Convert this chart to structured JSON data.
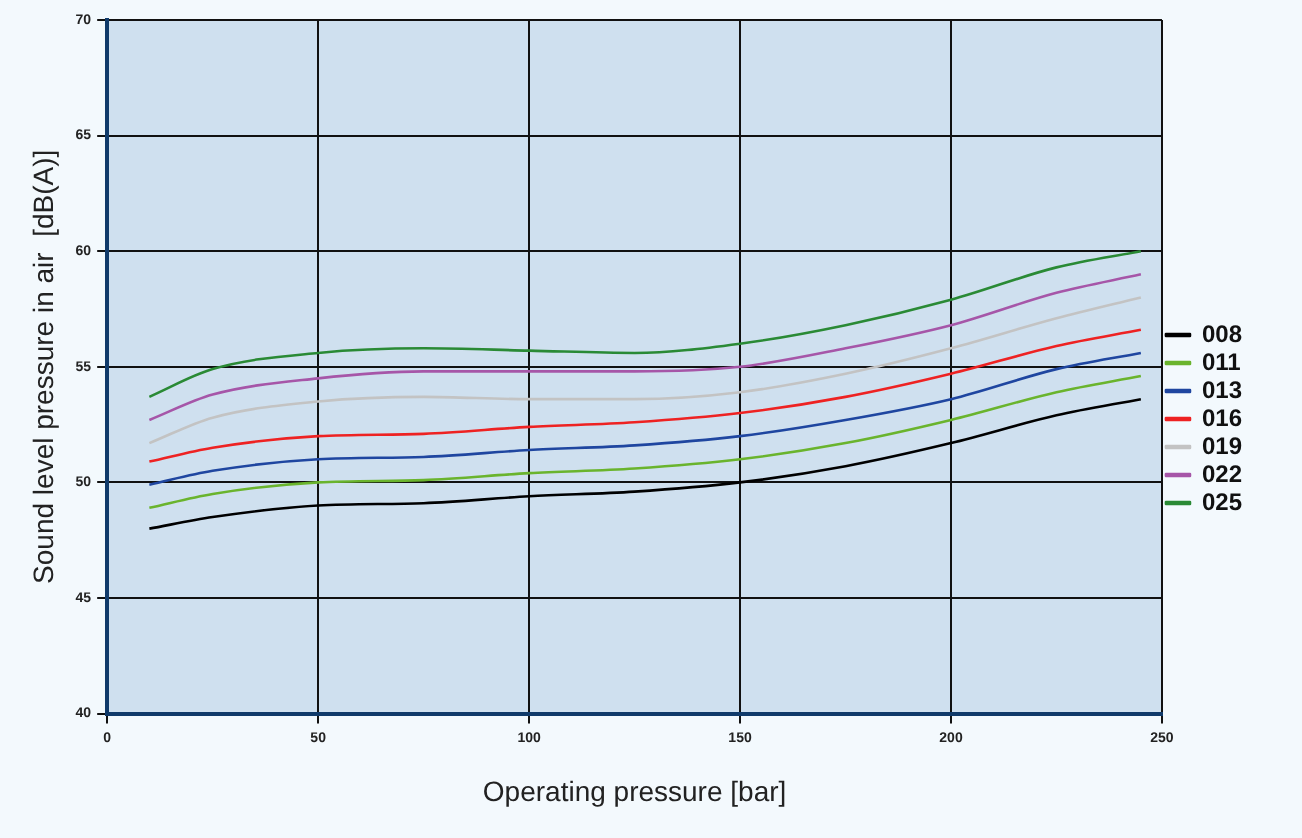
{
  "chart_data": {
    "type": "line",
    "xlabel": "Operating pressure [bar]",
    "ylabel": "Sound level pressure in air  [dB(A)]",
    "x": [
      10,
      25,
      50,
      75,
      100,
      125,
      150,
      175,
      200,
      225,
      245
    ],
    "xlim": [
      0,
      250
    ],
    "xticks": [
      0,
      50,
      100,
      150,
      200,
      250
    ],
    "ylim": [
      40,
      70
    ],
    "yticks": [
      40,
      45,
      50,
      55,
      60,
      65,
      70
    ],
    "grid": true,
    "legend": "right",
    "marker": "none",
    "line_style": "solid",
    "series": [
      {
        "name": "008",
        "color": "#000000",
        "values": [
          48.0,
          48.5,
          49.0,
          49.1,
          49.4,
          49.6,
          50.0,
          50.7,
          51.7,
          52.9,
          53.6
        ]
      },
      {
        "name": "011",
        "color": "#6ab42d",
        "values": [
          48.9,
          49.5,
          50.0,
          50.1,
          50.4,
          50.6,
          51.0,
          51.7,
          52.7,
          53.9,
          54.6
        ]
      },
      {
        "name": "013",
        "color": "#1f46a0",
        "values": [
          49.9,
          50.5,
          51.0,
          51.1,
          51.4,
          51.6,
          52.0,
          52.7,
          53.6,
          54.9,
          55.6
        ]
      },
      {
        "name": "016",
        "color": "#ee2222",
        "values": [
          50.9,
          51.5,
          52.0,
          52.1,
          52.4,
          52.6,
          53.0,
          53.7,
          54.7,
          55.9,
          56.6
        ]
      },
      {
        "name": "019",
        "color": "#c3c3c3",
        "values": [
          51.7,
          52.8,
          53.5,
          53.7,
          53.6,
          53.6,
          53.9,
          54.7,
          55.8,
          57.1,
          58.0
        ]
      },
      {
        "name": "022",
        "color": "#a656a8",
        "values": [
          52.7,
          53.8,
          54.5,
          54.8,
          54.8,
          54.8,
          55.0,
          55.8,
          56.8,
          58.2,
          59.0
        ]
      },
      {
        "name": "025",
        "color": "#2a8a35",
        "values": [
          53.7,
          54.9,
          55.6,
          55.8,
          55.7,
          55.6,
          56.0,
          56.8,
          57.9,
          59.3,
          60.0
        ]
      }
    ]
  }
}
